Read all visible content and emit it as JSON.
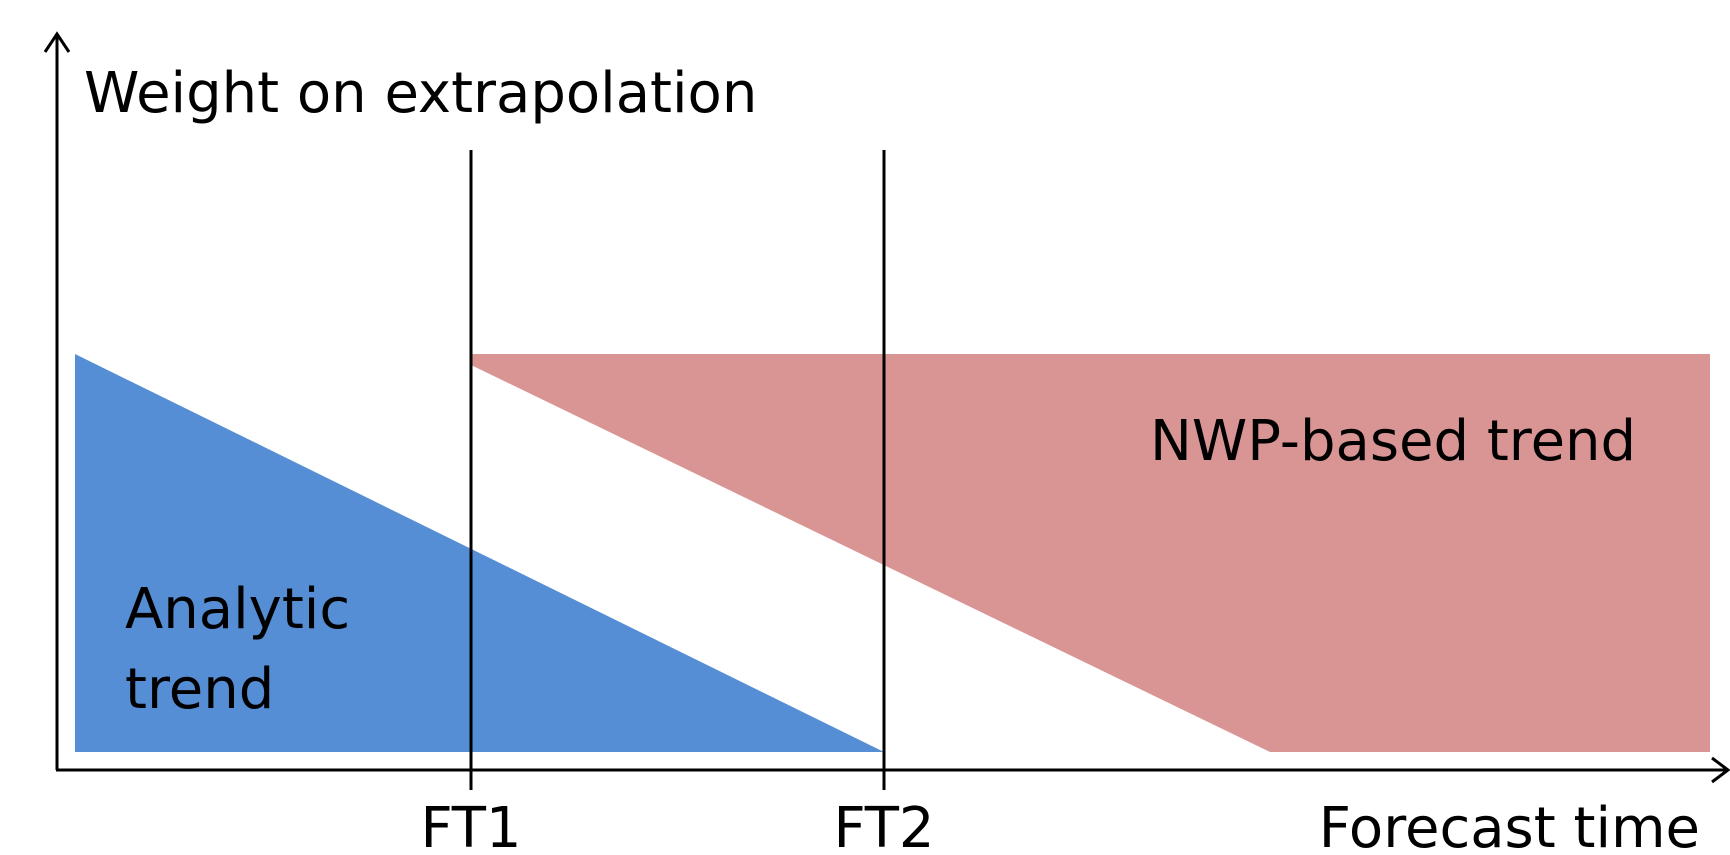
{
  "diagram": {
    "y_axis_label": "Weight on extrapolation",
    "x_axis_label": "Forecast time",
    "markers": {
      "ft1": "FT1",
      "ft2": "FT2"
    },
    "regions": {
      "analytic": {
        "label_line1": "Analytic",
        "label_line2": "trend",
        "color": "#558ed5"
      },
      "nwp": {
        "label": "NWP-based trend",
        "color": "#d99594"
      }
    },
    "axis_color": "#000000",
    "background": "#ffffff"
  }
}
